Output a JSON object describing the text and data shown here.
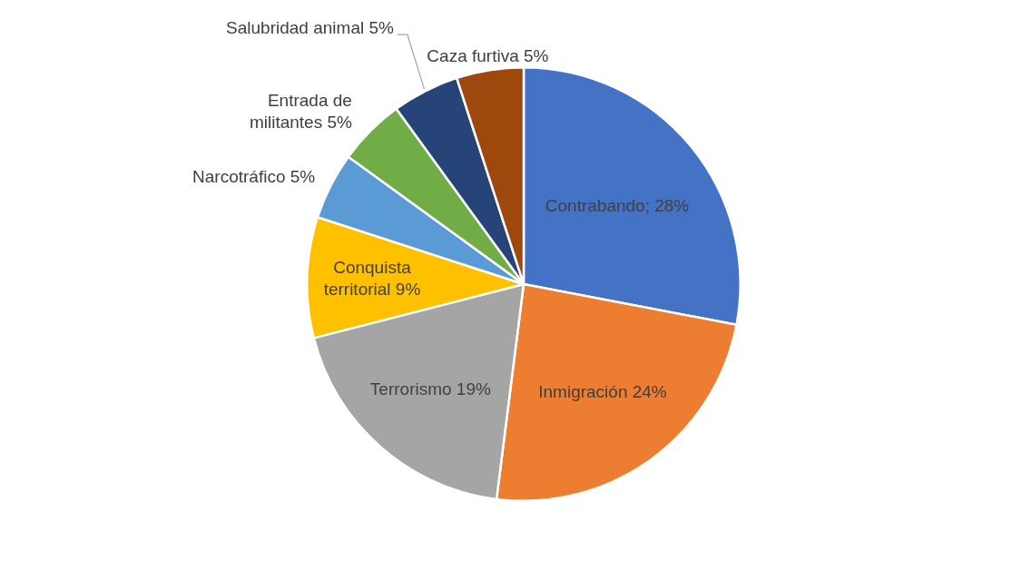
{
  "chart_data": {
    "type": "pie",
    "categories": [
      "Contrabando; 28%",
      "Inmigración 24%",
      "Terrorismo 19%",
      "Conquista territorial 9%",
      "Narcotráfico 5%",
      "Entrada de militantes 5%",
      "Salubridad animal 5%",
      "Caza furtiva 5%"
    ],
    "values": [
      28,
      24,
      19,
      9,
      5,
      5,
      5,
      5
    ],
    "colors": [
      "#4472c4",
      "#ed7d31",
      "#a5a5a5",
      "#ffc000",
      "#5b9bd5",
      "#70ad47",
      "#264478",
      "#9e480e"
    ],
    "legend": false
  }
}
